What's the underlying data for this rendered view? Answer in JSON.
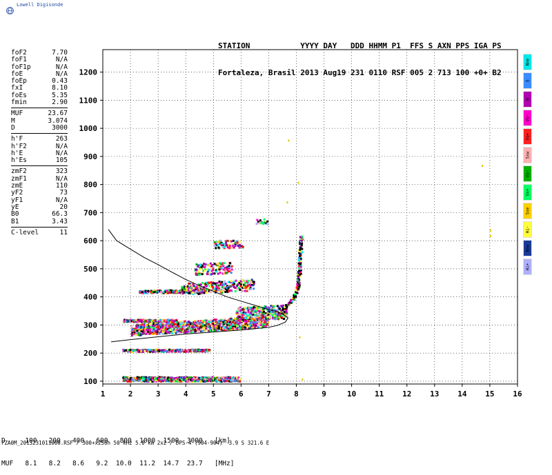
{
  "logo_text": "Lowell Digisonde",
  "header": {
    "line1": "STATION           YYYY DAY   DDD HHMM P1  FFS S AXN PPS IGA PS",
    "line2": "Fortaleza, Brasil 2013 Aug19 231 0110 RSF 005 2 713 100 +0+ B2"
  },
  "params": [
    {
      "group": [
        {
          "label": "foF2",
          "value": "7.70"
        },
        {
          "label": "foF1",
          "value": "N/A"
        },
        {
          "label": "foF1p",
          "value": "N/A"
        },
        {
          "label": "foE",
          "value": "N/A"
        },
        {
          "label": "foEp",
          "value": "0.43"
        },
        {
          "label": "fxI",
          "value": "8.10"
        },
        {
          "label": "foEs",
          "value": "5.35"
        },
        {
          "label": "fmin",
          "value": "2.90"
        }
      ]
    },
    {
      "group": [
        {
          "label": "MUF",
          "value": "23.67"
        },
        {
          "label": "M",
          "value": "3.074"
        },
        {
          "label": "D",
          "value": "3000"
        }
      ]
    },
    {
      "group": [
        {
          "label": "h'F",
          "value": "263"
        },
        {
          "label": "h'F2",
          "value": "N/A"
        },
        {
          "label": "h'E",
          "value": "N/A"
        },
        {
          "label": "h'Es",
          "value": "105"
        }
      ]
    },
    {
      "group": [
        {
          "label": "zmF2",
          "value": "323"
        },
        {
          "label": "zmF1",
          "value": "N/A"
        },
        {
          "label": "zmE",
          "value": "110"
        },
        {
          "label": "yF2",
          "value": "73"
        },
        {
          "label": "yF1",
          "value": "N/A"
        },
        {
          "label": "yE",
          "value": "20"
        },
        {
          "label": "B0",
          "value": "66.3"
        },
        {
          "label": "B1",
          "value": "3.43"
        }
      ]
    },
    {
      "group": [
        {
          "label": "C-level",
          "value": "11"
        }
      ]
    }
  ],
  "legend": [
    {
      "label": "Nne",
      "color": "#00e8e8"
    },
    {
      "label": "E",
      "color": "#3a8cff"
    },
    {
      "label": "W",
      "color": "#b000b0"
    },
    {
      "label": "Vo-",
      "color": "#ff00c8"
    },
    {
      "label": "Vo+",
      "color": "#ff2020"
    },
    {
      "label": "Ssw",
      "color": "#ffb0b0"
    },
    {
      "label": "Vx-",
      "color": "#00b000"
    },
    {
      "label": "Vx+",
      "color": "#00ff60"
    },
    {
      "label": "Sse",
      "color": "#ffd000"
    },
    {
      "label": "Hi-",
      "color": "#ffff40"
    },
    {
      "label": "Nnw",
      "color": "#1a3a9a"
    },
    {
      "label": "Hi+",
      "color": "#b0b0ff"
    }
  ],
  "footer": {
    "row1": "D     100   200   400   600   800  1000  1500  3000   [km]",
    "row2": "MUF   8.1   8.2   8.6   9.2  10.0  11.2  14.7  23.7   [MHz]",
    "info": "FZA0M_2013231011000.RSF / 300+x256h 50 kHz 5.0 km 2x2 / DPS-4 (904-904)  3.9 S 321.6 E"
  },
  "chart_data": {
    "type": "scatter",
    "xlim": [
      1,
      16
    ],
    "ylim": [
      90,
      1280
    ],
    "x_ticks": [
      "1",
      "2",
      "3",
      "4",
      "5",
      "6",
      "7",
      "8",
      "9",
      "10",
      "11",
      "12",
      "13",
      "14",
      "15",
      "16"
    ],
    "y_ticks": [
      "100",
      "200",
      "300",
      "400",
      "500",
      "600",
      "700",
      "800",
      "900",
      "1000",
      "1100",
      "1200"
    ],
    "grid": true,
    "profile_curve": [
      [
        1.2,
        640
      ],
      [
        1.5,
        600
      ],
      [
        2.0,
        570
      ],
      [
        2.5,
        540
      ],
      [
        3.0,
        515
      ],
      [
        3.5,
        488
      ],
      [
        4.0,
        462
      ],
      [
        4.5,
        440
      ],
      [
        5.0,
        420
      ],
      [
        5.5,
        400
      ],
      [
        6.0,
        385
      ],
      [
        6.5,
        370
      ],
      [
        7.0,
        355
      ],
      [
        7.3,
        348
      ],
      [
        7.5,
        340
      ],
      [
        7.7,
        325
      ],
      [
        7.6,
        310
      ],
      [
        7.3,
        298
      ],
      [
        7.0,
        292
      ],
      [
        6.5,
        287
      ],
      [
        6.0,
        282
      ],
      [
        5.0,
        275
      ],
      [
        4.0,
        268
      ],
      [
        3.0,
        258
      ],
      [
        2.0,
        248
      ],
      [
        1.3,
        240
      ]
    ],
    "echo_bands": [
      {
        "x0": 1.7,
        "x1": 5.9,
        "y": 110,
        "spread": 8,
        "dens": 7
      },
      {
        "x0": 1.7,
        "x1": 4.8,
        "y": 212,
        "spread": 4,
        "dens": 4
      },
      {
        "x0": 1.7,
        "x1": 3.6,
        "y": 318,
        "spread": 4,
        "dens": 5
      },
      {
        "x0": 2.0,
        "x1": 6.9,
        "y": 285,
        "spread": 20,
        "dens": 9
      },
      {
        "x0": 5.8,
        "x1": 7.6,
        "y": 340,
        "spread": 25,
        "dens": 9
      },
      {
        "x0": 2.3,
        "x1": 4.6,
        "y": 422,
        "spread": 5,
        "dens": 4
      },
      {
        "x0": 3.8,
        "x1": 6.4,
        "y": 430,
        "spread": 20,
        "dens": 5
      },
      {
        "x0": 4.3,
        "x1": 5.6,
        "y": 500,
        "spread": 20,
        "dens": 4
      },
      {
        "x0": 5.0,
        "x1": 6.0,
        "y": 590,
        "spread": 14,
        "dens": 3
      },
      {
        "x0": 6.5,
        "x1": 6.9,
        "y": 670,
        "spread": 10,
        "dens": 2
      }
    ],
    "vertical_trace": [
      [
        7.5,
        360
      ],
      [
        7.7,
        380
      ],
      [
        7.9,
        400
      ],
      [
        8.0,
        430
      ],
      [
        8.05,
        460
      ],
      [
        8.08,
        490
      ],
      [
        8.1,
        520
      ],
      [
        8.12,
        560
      ],
      [
        8.15,
        600
      ],
      [
        8.15,
        620
      ]
    ],
    "stray_points": [
      [
        7.7,
        960
      ],
      [
        8.05,
        810
      ],
      [
        7.65,
        740
      ],
      [
        14.7,
        870
      ],
      [
        15.0,
        640
      ],
      [
        15.0,
        620
      ],
      [
        8.1,
        260
      ],
      [
        8.2,
        110
      ]
    ]
  }
}
